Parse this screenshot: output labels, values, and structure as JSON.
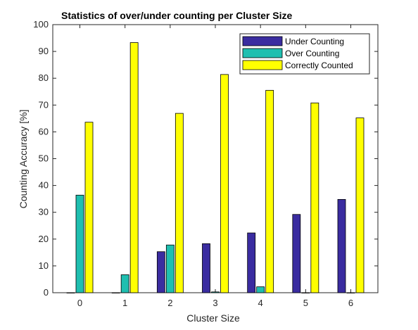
{
  "chart_data": {
    "type": "bar",
    "title": "Statistics of over/under counting per Cluster Size",
    "xlabel": "Cluster Size",
    "ylabel": "Counting Accuracy [%]",
    "categories": [
      "0",
      "1",
      "2",
      "3",
      "4",
      "5",
      "6"
    ],
    "ylim": [
      0,
      100
    ],
    "yticks": [
      0,
      10,
      20,
      30,
      40,
      50,
      60,
      70,
      80,
      90,
      100
    ],
    "yticklabels": [
      "0",
      "10",
      "20",
      "30",
      "40",
      "50",
      "60",
      "70",
      "80",
      "90",
      "100"
    ],
    "grid": false,
    "legend_position": "top-right",
    "series": [
      {
        "name": "Under Counting",
        "color": "#3a2ca0",
        "values": [
          0,
          0,
          15.3,
          18.3,
          22.3,
          29.2,
          34.8
        ]
      },
      {
        "name": "Over Counting",
        "color": "#1fbfb0",
        "values": [
          36.4,
          6.7,
          17.8,
          0.3,
          2.2,
          0,
          0
        ]
      },
      {
        "name": "Correctly Counted",
        "color": "#ffff00",
        "values": [
          63.6,
          93.3,
          66.9,
          81.4,
          75.5,
          70.8,
          65.2
        ]
      }
    ]
  }
}
